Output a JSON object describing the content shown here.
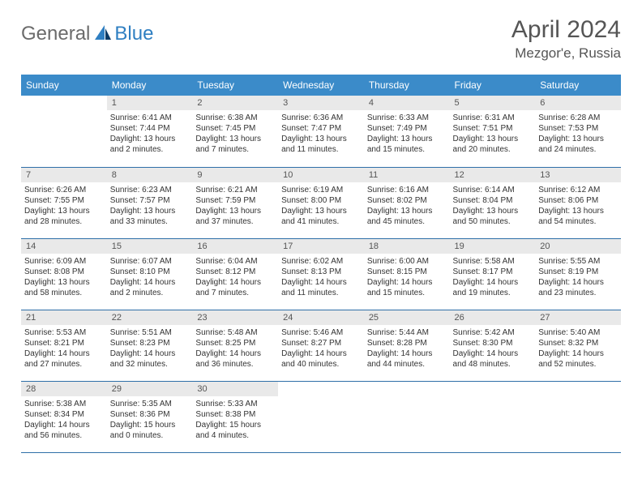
{
  "logo": {
    "part1": "General",
    "part2": "Blue"
  },
  "title": "April 2024",
  "location": "Mezgor'e, Russia",
  "colors": {
    "header_bg": "#3b8bc9",
    "header_text": "#ffffff",
    "daynum_bg": "#e9e9e9",
    "border": "#2f6fa8",
    "logo_gray": "#6b6b6b",
    "logo_blue": "#2f7fc2",
    "text": "#333333"
  },
  "weekdays": [
    "Sunday",
    "Monday",
    "Tuesday",
    "Wednesday",
    "Thursday",
    "Friday",
    "Saturday"
  ],
  "start_offset": 1,
  "days_in_month": 30,
  "days": [
    {
      "n": 1,
      "sunrise": "6:41 AM",
      "sunset": "7:44 PM",
      "dlh": 13,
      "dlm": 2
    },
    {
      "n": 2,
      "sunrise": "6:38 AM",
      "sunset": "7:45 PM",
      "dlh": 13,
      "dlm": 7
    },
    {
      "n": 3,
      "sunrise": "6:36 AM",
      "sunset": "7:47 PM",
      "dlh": 13,
      "dlm": 11
    },
    {
      "n": 4,
      "sunrise": "6:33 AM",
      "sunset": "7:49 PM",
      "dlh": 13,
      "dlm": 15
    },
    {
      "n": 5,
      "sunrise": "6:31 AM",
      "sunset": "7:51 PM",
      "dlh": 13,
      "dlm": 20
    },
    {
      "n": 6,
      "sunrise": "6:28 AM",
      "sunset": "7:53 PM",
      "dlh": 13,
      "dlm": 24
    },
    {
      "n": 7,
      "sunrise": "6:26 AM",
      "sunset": "7:55 PM",
      "dlh": 13,
      "dlm": 28
    },
    {
      "n": 8,
      "sunrise": "6:23 AM",
      "sunset": "7:57 PM",
      "dlh": 13,
      "dlm": 33
    },
    {
      "n": 9,
      "sunrise": "6:21 AM",
      "sunset": "7:59 PM",
      "dlh": 13,
      "dlm": 37
    },
    {
      "n": 10,
      "sunrise": "6:19 AM",
      "sunset": "8:00 PM",
      "dlh": 13,
      "dlm": 41
    },
    {
      "n": 11,
      "sunrise": "6:16 AM",
      "sunset": "8:02 PM",
      "dlh": 13,
      "dlm": 45
    },
    {
      "n": 12,
      "sunrise": "6:14 AM",
      "sunset": "8:04 PM",
      "dlh": 13,
      "dlm": 50
    },
    {
      "n": 13,
      "sunrise": "6:12 AM",
      "sunset": "8:06 PM",
      "dlh": 13,
      "dlm": 54
    },
    {
      "n": 14,
      "sunrise": "6:09 AM",
      "sunset": "8:08 PM",
      "dlh": 13,
      "dlm": 58
    },
    {
      "n": 15,
      "sunrise": "6:07 AM",
      "sunset": "8:10 PM",
      "dlh": 14,
      "dlm": 2
    },
    {
      "n": 16,
      "sunrise": "6:04 AM",
      "sunset": "8:12 PM",
      "dlh": 14,
      "dlm": 7
    },
    {
      "n": 17,
      "sunrise": "6:02 AM",
      "sunset": "8:13 PM",
      "dlh": 14,
      "dlm": 11
    },
    {
      "n": 18,
      "sunrise": "6:00 AM",
      "sunset": "8:15 PM",
      "dlh": 14,
      "dlm": 15
    },
    {
      "n": 19,
      "sunrise": "5:58 AM",
      "sunset": "8:17 PM",
      "dlh": 14,
      "dlm": 19
    },
    {
      "n": 20,
      "sunrise": "5:55 AM",
      "sunset": "8:19 PM",
      "dlh": 14,
      "dlm": 23
    },
    {
      "n": 21,
      "sunrise": "5:53 AM",
      "sunset": "8:21 PM",
      "dlh": 14,
      "dlm": 27
    },
    {
      "n": 22,
      "sunrise": "5:51 AM",
      "sunset": "8:23 PM",
      "dlh": 14,
      "dlm": 32
    },
    {
      "n": 23,
      "sunrise": "5:48 AM",
      "sunset": "8:25 PM",
      "dlh": 14,
      "dlm": 36
    },
    {
      "n": 24,
      "sunrise": "5:46 AM",
      "sunset": "8:27 PM",
      "dlh": 14,
      "dlm": 40
    },
    {
      "n": 25,
      "sunrise": "5:44 AM",
      "sunset": "8:28 PM",
      "dlh": 14,
      "dlm": 44
    },
    {
      "n": 26,
      "sunrise": "5:42 AM",
      "sunset": "8:30 PM",
      "dlh": 14,
      "dlm": 48
    },
    {
      "n": 27,
      "sunrise": "5:40 AM",
      "sunset": "8:32 PM",
      "dlh": 14,
      "dlm": 52
    },
    {
      "n": 28,
      "sunrise": "5:38 AM",
      "sunset": "8:34 PM",
      "dlh": 14,
      "dlm": 56
    },
    {
      "n": 29,
      "sunrise": "5:35 AM",
      "sunset": "8:36 PM",
      "dlh": 15,
      "dlm": 0
    },
    {
      "n": 30,
      "sunrise": "5:33 AM",
      "sunset": "8:38 PM",
      "dlh": 15,
      "dlm": 4
    }
  ]
}
